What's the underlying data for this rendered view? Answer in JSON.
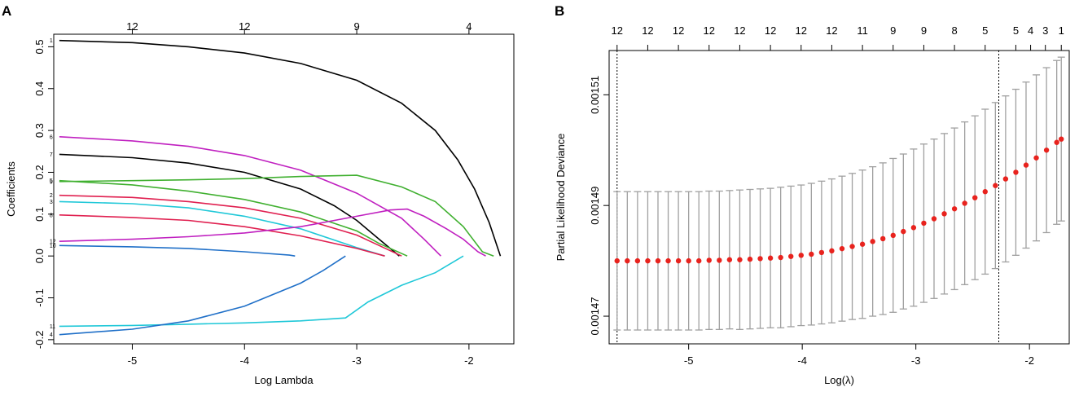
{
  "chart_data": [
    {
      "panel_label": "A",
      "type": "line",
      "xlabel": "Log Lambda",
      "ylabel": "Coefficients",
      "xlim": [
        -5.7,
        -1.6
      ],
      "ylim": [
        -0.21,
        0.53
      ],
      "x_ticks": [
        "-5",
        "-4",
        "-3",
        "-2"
      ],
      "x_tick_values": [
        -5,
        -4,
        -3,
        -2
      ],
      "y_ticks": [
        "-0.2",
        "-0.1",
        "0.0",
        "0.1",
        "0.2",
        "0.3",
        "0.4",
        "0.5"
      ],
      "y_tick_values": [
        -0.2,
        -0.1,
        0.0,
        0.1,
        0.2,
        0.3,
        0.4,
        0.5
      ],
      "top_ticks": [
        "12",
        "12",
        "9",
        "4"
      ],
      "top_tick_values": [
        -5,
        -4,
        -3,
        -2
      ],
      "series": [
        {
          "name": "1",
          "label": "1",
          "color": "#000000",
          "x": [
            -5.65,
            -5.0,
            -4.5,
            -4.0,
            -3.5,
            -3.0,
            -2.6,
            -2.3,
            -2.1,
            -1.95,
            -1.82,
            -1.72
          ],
          "y": [
            0.515,
            0.51,
            0.5,
            0.485,
            0.46,
            0.42,
            0.365,
            0.3,
            0.23,
            0.16,
            0.08,
            0.0
          ]
        },
        {
          "name": "6",
          "label": "6",
          "color": "#c020c0",
          "x": [
            -5.65,
            -5.0,
            -4.5,
            -4.0,
            -3.5,
            -3.0,
            -2.6,
            -2.4,
            -2.25
          ],
          "y": [
            0.285,
            0.275,
            0.262,
            0.24,
            0.205,
            0.15,
            0.09,
            0.04,
            0.0
          ]
        },
        {
          "name": "7",
          "label": "7",
          "color": "#000000",
          "x": [
            -5.65,
            -5.0,
            -4.5,
            -4.0,
            -3.5,
            -3.2,
            -3.0,
            -2.8,
            -2.62
          ],
          "y": [
            0.243,
            0.235,
            0.222,
            0.2,
            0.16,
            0.12,
            0.085,
            0.04,
            0.0
          ]
        },
        {
          "name": "9",
          "label": "9",
          "color": "#40b030",
          "x": [
            -5.65,
            -5.0,
            -4.5,
            -4.0,
            -3.5,
            -3.0,
            -2.6,
            -2.3,
            -2.05,
            -1.88,
            -1.78
          ],
          "y": [
            0.178,
            0.18,
            0.182,
            0.185,
            0.19,
            0.193,
            0.165,
            0.13,
            0.07,
            0.01,
            0.0
          ]
        },
        {
          "name": "5",
          "label": "5",
          "color": "#40b030",
          "x": [
            -5.65,
            -5.0,
            -4.5,
            -4.0,
            -3.5,
            -3.0,
            -2.8,
            -2.55
          ],
          "y": [
            0.18,
            0.17,
            0.155,
            0.135,
            0.105,
            0.06,
            0.03,
            0.0
          ]
        },
        {
          "name": "2",
          "label": "2",
          "color": "#e02050",
          "x": [
            -5.65,
            -5.0,
            -4.5,
            -4.0,
            -3.5,
            -3.0,
            -2.8,
            -2.6
          ],
          "y": [
            0.145,
            0.14,
            0.13,
            0.115,
            0.09,
            0.05,
            0.025,
            0.0
          ]
        },
        {
          "name": "3",
          "label": "3",
          "color": "#20c8d8",
          "x": [
            -5.65,
            -5.0,
            -4.5,
            -4.0,
            -3.5,
            -3.0,
            -2.75
          ],
          "y": [
            0.13,
            0.125,
            0.115,
            0.095,
            0.065,
            0.02,
            0.0
          ]
        },
        {
          "name": "8",
          "label": "8",
          "color": "#e02050",
          "x": [
            -5.65,
            -5.0,
            -4.5,
            -4.0,
            -3.5,
            -3.0,
            -2.75
          ],
          "y": [
            0.098,
            0.092,
            0.085,
            0.07,
            0.048,
            0.018,
            0.0
          ]
        },
        {
          "name": "12",
          "label": "12",
          "color": "#c020c0",
          "x": [
            -5.65,
            -5.0,
            -4.5,
            -4.0,
            -3.5,
            -3.0,
            -2.7,
            -2.55,
            -2.4,
            -2.2,
            -2.05,
            -1.92,
            -1.85
          ],
          "y": [
            0.035,
            0.04,
            0.046,
            0.055,
            0.07,
            0.095,
            0.11,
            0.112,
            0.095,
            0.065,
            0.04,
            0.01,
            0.0
          ]
        },
        {
          "name": "10",
          "label": "10",
          "color": "#2070c8",
          "x": [
            -5.65,
            -5.0,
            -4.5,
            -4.0,
            -3.6,
            -3.55
          ],
          "y": [
            0.025,
            0.022,
            0.018,
            0.01,
            0.002,
            0.0
          ]
        },
        {
          "name": "11",
          "label": "11",
          "color": "#20c8d8",
          "x": [
            -5.65,
            -5.0,
            -4.5,
            -4.0,
            -3.5,
            -3.1,
            -2.9,
            -2.6,
            -2.3,
            -2.05
          ],
          "y": [
            -0.168,
            -0.166,
            -0.163,
            -0.16,
            -0.155,
            -0.148,
            -0.11,
            -0.07,
            -0.04,
            0.0
          ]
        },
        {
          "name": "4",
          "label": "4",
          "color": "#2070c8",
          "x": [
            -5.65,
            -5.0,
            -4.5,
            -4.0,
            -3.5,
            -3.3,
            -3.1
          ],
          "y": [
            -0.188,
            -0.175,
            -0.155,
            -0.12,
            -0.065,
            -0.035,
            0.0
          ]
        }
      ]
    },
    {
      "panel_label": "B",
      "type": "scatter",
      "xlabel": "Log(λ)",
      "ylabel": "Partial Likelihood Deviance",
      "xlim": [
        -5.7,
        -1.65
      ],
      "ylim": [
        0.001465,
        0.001518
      ],
      "x_ticks": [
        "-5",
        "-4",
        "-3",
        "-2"
      ],
      "x_tick_values": [
        -5,
        -4,
        -3,
        -2
      ],
      "y_ticks": [
        "0.00147",
        "0.00149",
        "0.00151"
      ],
      "y_tick_values": [
        0.00147,
        0.00149,
        0.00151
      ],
      "top_ticks": [
        "12",
        "12",
        "12",
        "12",
        "12",
        "12",
        "12",
        "12",
        "11",
        "9",
        "9",
        "8",
        "5",
        "5",
        "4",
        "3",
        "1"
      ],
      "top_tick_values": [
        -5.63,
        -5.36,
        -5.09,
        -4.82,
        -4.55,
        -4.28,
        -4.01,
        -3.74,
        -3.47,
        -3.2,
        -2.93,
        -2.66,
        -2.39,
        -2.12,
        -1.99,
        -1.86,
        -1.72
      ],
      "lambda_min": -5.63,
      "lambda_1se": -2.27,
      "point_color": "#e8231e",
      "errorbar_color": "#a0a0a0",
      "log_lambda": [
        -5.63,
        -5.54,
        -5.45,
        -5.36,
        -5.27,
        -5.18,
        -5.09,
        -5.0,
        -4.91,
        -4.82,
        -4.73,
        -4.64,
        -4.55,
        -4.46,
        -4.37,
        -4.28,
        -4.19,
        -4.1,
        -4.01,
        -3.92,
        -3.83,
        -3.74,
        -3.65,
        -3.56,
        -3.47,
        -3.38,
        -3.29,
        -3.2,
        -3.11,
        -3.02,
        -2.93,
        -2.84,
        -2.75,
        -2.66,
        -2.57,
        -2.48,
        -2.39,
        -2.3,
        -2.21,
        -2.12,
        -2.03,
        -1.94,
        -1.85,
        -1.76,
        -1.72
      ],
      "deviance": [
        0.00148,
        0.00148,
        0.00148,
        0.00148,
        0.00148,
        0.00148,
        0.00148,
        0.00148,
        0.00148,
        0.0014801,
        0.0014801,
        0.0014802,
        0.0014802,
        0.0014803,
        0.0014804,
        0.0014805,
        0.0014806,
        0.0014808,
        0.001481,
        0.0014812,
        0.0014815,
        0.0014818,
        0.0014822,
        0.0014826,
        0.001483,
        0.0014835,
        0.001484,
        0.0014846,
        0.0014853,
        0.001486,
        0.0014868,
        0.0014876,
        0.0014885,
        0.0014894,
        0.0014904,
        0.0014914,
        0.0014925,
        0.0014936,
        0.0014948,
        0.001496,
        0.0014973,
        0.0014986,
        0.0015,
        0.0015014,
        0.001502
      ],
      "upper": [
        0.0014925,
        0.0014925,
        0.0014925,
        0.0014925,
        0.0014925,
        0.0014925,
        0.0014925,
        0.0014925,
        0.0014925,
        0.0014926,
        0.0014926,
        0.0014927,
        0.0014928,
        0.0014929,
        0.001493,
        0.0014931,
        0.0014933,
        0.0014935,
        0.0014937,
        0.001494,
        0.0014944,
        0.0014948,
        0.0014953,
        0.0014958,
        0.0014964,
        0.001497,
        0.0014977,
        0.0014985,
        0.0014993,
        0.0015002,
        0.0015011,
        0.001502,
        0.001503,
        0.001504,
        0.0015051,
        0.0015062,
        0.0015074,
        0.0015086,
        0.0015098,
        0.001511,
        0.0015123,
        0.0015136,
        0.0015149,
        0.0015162,
        0.0015168
      ],
      "lower": [
        0.0014675,
        0.0014675,
        0.0014675,
        0.0014675,
        0.0014675,
        0.0014675,
        0.0014675,
        0.0014675,
        0.0014675,
        0.0014676,
        0.0014676,
        0.0014677,
        0.0014676,
        0.0014677,
        0.0014678,
        0.0014679,
        0.0014679,
        0.0014681,
        0.0014683,
        0.0014684,
        0.0014686,
        0.0014688,
        0.0014691,
        0.0014694,
        0.0014696,
        0.00147,
        0.0014703,
        0.0014707,
        0.0014713,
        0.0014718,
        0.0014725,
        0.0014732,
        0.001474,
        0.0014748,
        0.0014757,
        0.0014766,
        0.0014776,
        0.0014786,
        0.0014798,
        0.001481,
        0.0014823,
        0.0014836,
        0.0014851,
        0.0014866,
        0.0014872
      ]
    }
  ]
}
